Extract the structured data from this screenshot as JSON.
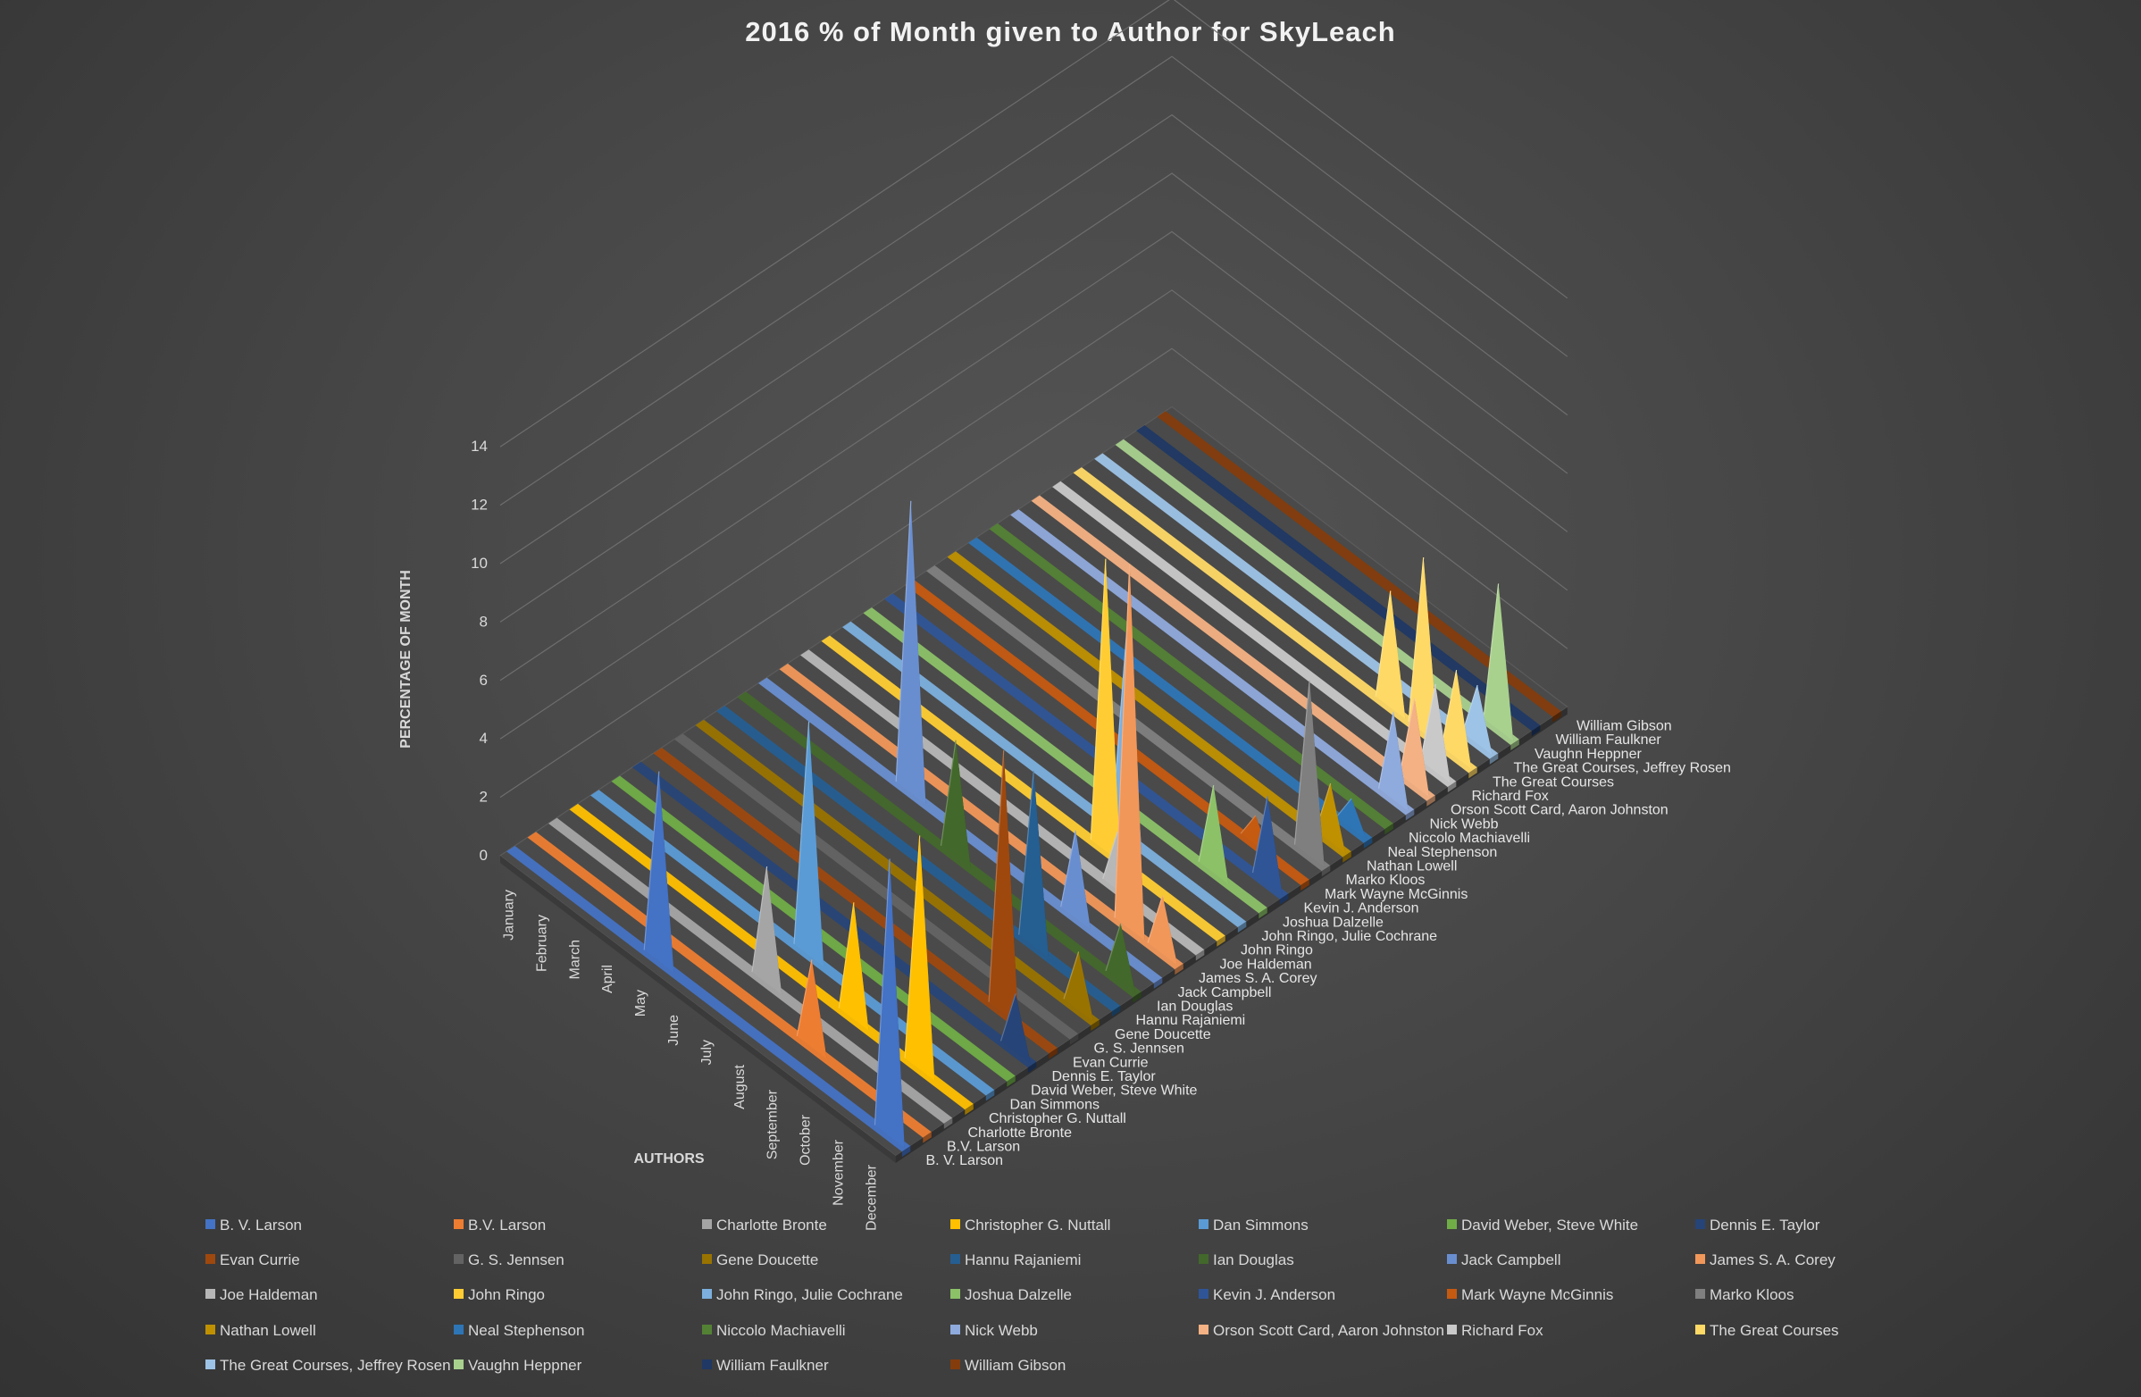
{
  "chart_data": {
    "type": "3d-column",
    "title": "2016 % of Month given to Author for SkyLeach",
    "ylabel": "PERCENTAGE OF MONTH",
    "xlabel": "AUTHORS",
    "ylim": [
      0,
      14
    ],
    "y_ticks": [
      "0",
      "2",
      "4",
      "6",
      "8",
      "10",
      "12",
      "14"
    ],
    "categories": [
      "January",
      "February",
      "March",
      "April",
      "May",
      "June",
      "July",
      "August",
      "September",
      "October",
      "November",
      "December"
    ],
    "legend_position": "bottom",
    "series": [
      {
        "name": "B. V. Larson",
        "color": "#4472c4",
        "values": [
          0,
          0,
          0,
          0,
          6.5,
          0,
          0,
          0,
          0,
          0,
          0,
          9.5
        ]
      },
      {
        "name": "B.V. Larson",
        "color": "#ed7d31",
        "values": [
          0,
          0,
          0,
          0,
          0,
          0,
          0,
          0,
          3,
          0,
          0,
          0
        ]
      },
      {
        "name": "Charlotte Bronte",
        "color": "#a5a5a5",
        "values": [
          0,
          0,
          0,
          0,
          0,
          0,
          4,
          0,
          0,
          0,
          0,
          0
        ]
      },
      {
        "name": "Christopher G. Nuttall",
        "color": "#ffc000",
        "values": [
          0,
          0,
          0,
          0,
          0,
          0,
          0,
          0,
          4,
          0,
          8,
          0
        ]
      },
      {
        "name": "Dan Simmons",
        "color": "#5b9bd5",
        "values": [
          0,
          0,
          0,
          0,
          0,
          0,
          8,
          0,
          0,
          0,
          0,
          0
        ]
      },
      {
        "name": "David Weber, Steve White",
        "color": "#70ad47",
        "values": [
          0,
          0,
          0,
          0,
          0,
          0,
          0,
          0,
          0,
          0,
          0,
          0
        ]
      },
      {
        "name": "Dennis E. Taylor",
        "color": "#264478",
        "values": [
          0,
          0,
          0,
          0,
          0,
          0,
          0,
          0,
          0,
          0,
          0,
          2
        ]
      },
      {
        "name": "Evan Currie",
        "color": "#9e480e",
        "values": [
          0,
          0,
          0,
          0,
          0,
          0,
          0,
          0,
          0,
          0,
          9,
          0
        ]
      },
      {
        "name": "G. S. Jennsen",
        "color": "#636363",
        "values": [
          0,
          0,
          0,
          0,
          0,
          0,
          0,
          0,
          0,
          0,
          0,
          0
        ]
      },
      {
        "name": "Gene Doucette",
        "color": "#997300",
        "values": [
          0,
          0,
          0,
          0,
          0,
          0,
          0,
          0,
          0,
          0,
          0,
          2
        ]
      },
      {
        "name": "Hannu Rajaniemi",
        "color": "#255e91",
        "values": [
          0,
          0,
          0,
          0,
          0,
          0,
          0,
          0,
          0,
          6,
          0,
          0
        ]
      },
      {
        "name": "Ian Douglas",
        "color": "#43682b",
        "values": [
          0,
          0,
          0,
          0,
          0,
          0,
          4,
          0,
          0,
          0,
          0,
          2
        ]
      },
      {
        "name": "Jack Campbell",
        "color": "#698ed0",
        "values": [
          0,
          0,
          0,
          0,
          10,
          0,
          0,
          0,
          0,
          3,
          0,
          0
        ]
      },
      {
        "name": "James S. A. Corey",
        "color": "#f1975a",
        "values": [
          0,
          0,
          0,
          0,
          0,
          0,
          0,
          0,
          0,
          0,
          12.5,
          2
        ]
      },
      {
        "name": "Joe Haldeman",
        "color": "#b7b7b7",
        "values": [
          0,
          0,
          0,
          0,
          0,
          0,
          0,
          0,
          0,
          2,
          0,
          0
        ]
      },
      {
        "name": "John Ringo",
        "color": "#ffcd33",
        "values": [
          0,
          0,
          0,
          0,
          0,
          0,
          0,
          0,
          10,
          0,
          0,
          0
        ]
      },
      {
        "name": "John Ringo, Julie Cochrane",
        "color": "#7cafdd",
        "values": [
          0,
          0,
          0,
          0,
          0,
          0,
          0,
          0,
          7,
          0,
          0,
          0
        ]
      },
      {
        "name": "Joshua Dalzelle",
        "color": "#8cc168",
        "values": [
          0,
          0,
          0,
          0,
          0,
          0,
          0,
          0,
          0,
          0,
          3,
          0
        ]
      },
      {
        "name": "Kevin J. Anderson",
        "color": "#2f5597",
        "values": [
          0,
          0,
          0,
          0,
          0,
          0,
          0,
          0,
          0,
          0,
          0,
          3
        ]
      },
      {
        "name": "Mark Wayne McGinnis",
        "color": "#c55a11",
        "values": [
          0,
          0,
          0,
          0,
          0,
          0,
          0,
          0,
          0,
          0,
          1,
          0
        ]
      },
      {
        "name": "Marko Kloos",
        "color": "#7f7f7f",
        "values": [
          0,
          0,
          0,
          0,
          0,
          0,
          0,
          0,
          0,
          0,
          0,
          6
        ]
      },
      {
        "name": "Nathan Lowell",
        "color": "#bf9000",
        "values": [
          0,
          0,
          0,
          0,
          0,
          0,
          0,
          0,
          0,
          0,
          0,
          2
        ]
      },
      {
        "name": "Neal Stephenson",
        "color": "#2e75b6",
        "values": [
          0,
          0,
          0,
          0,
          0,
          0,
          0,
          0,
          0,
          0,
          0,
          1
        ]
      },
      {
        "name": "Niccolo Machiavelli",
        "color": "#548235",
        "values": [
          0,
          0,
          0,
          0,
          0,
          0,
          0,
          0,
          0,
          0,
          0,
          0
        ]
      },
      {
        "name": "Nick Webb",
        "color": "#8faadc",
        "values": [
          0,
          0,
          0,
          0,
          0,
          0,
          0,
          0,
          0,
          0,
          0,
          3
        ]
      },
      {
        "name": "Orson Scott Card, Aaron Johnston",
        "color": "#f4b183",
        "values": [
          0,
          0,
          0,
          0,
          0,
          0,
          0,
          0,
          0,
          0,
          0,
          3
        ]
      },
      {
        "name": "Richard Fox",
        "color": "#c9c9c9",
        "values": [
          0,
          0,
          0,
          0,
          0,
          0,
          0,
          0,
          0,
          0,
          0,
          3
        ]
      },
      {
        "name": "The Great Courses",
        "color": "#ffd966",
        "values": [
          0,
          0,
          0,
          0,
          0,
          0,
          0,
          0,
          0,
          4,
          6,
          3
        ]
      },
      {
        "name": "The Great Courses, Jeffrey Rosen",
        "color": "#9dc3e6",
        "values": [
          0,
          0,
          0,
          0,
          0,
          0,
          0,
          0,
          0,
          0,
          0,
          2
        ]
      },
      {
        "name": "Vaughn Heppner",
        "color": "#a9d18e",
        "values": [
          0,
          0,
          0,
          0,
          0,
          0,
          0,
          0,
          0,
          0,
          0,
          5
        ]
      },
      {
        "name": "William Faulkner",
        "color": "#1f3864",
        "values": [
          0,
          0,
          0,
          0,
          0,
          0,
          0,
          0,
          0,
          0,
          0,
          0
        ]
      },
      {
        "name": "William Gibson",
        "color": "#843c0c",
        "values": [
          0,
          0,
          0,
          0,
          0,
          0,
          0,
          0,
          0,
          0,
          0,
          0
        ]
      }
    ]
  }
}
